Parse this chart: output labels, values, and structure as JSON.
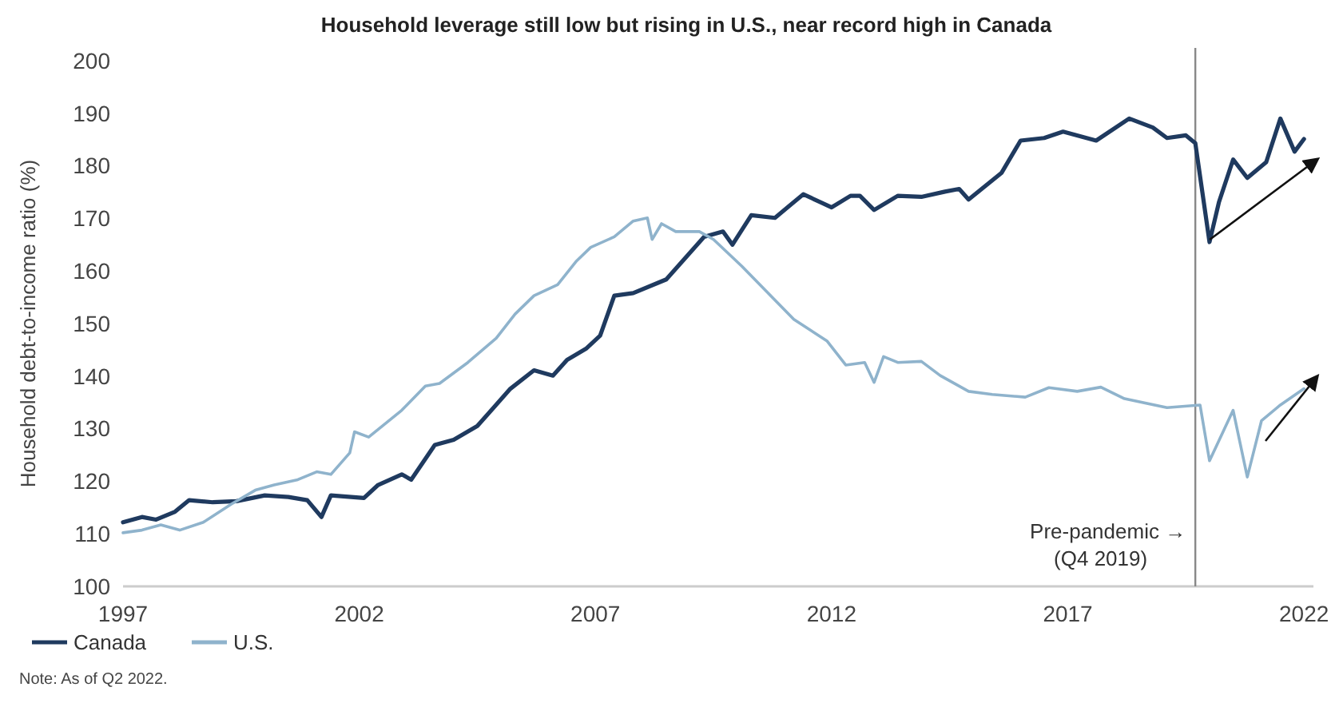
{
  "chart_data": {
    "type": "line",
    "title": "Household leverage still low but rising in U.S., near record high in Canada",
    "ylabel": "Household debt-to-income ratio (%)",
    "xlim": [
      1997,
      2022.2
    ],
    "xticks": [
      1997,
      2002,
      2007,
      2012,
      2017,
      2022
    ],
    "ylim": [
      100,
      200
    ],
    "yticks": [
      100,
      110,
      120,
      130,
      140,
      150,
      160,
      170,
      180,
      190,
      200
    ],
    "grid": false,
    "legend": "bottom left",
    "line_style": "solid",
    "marker": "none",
    "series": [
      {
        "name": "Canada",
        "color": "#1f3a5f",
        "x": [
          1997.0,
          1997.4,
          1997.7,
          1998.1,
          1998.4,
          1998.9,
          1999.4,
          2000.0,
          2000.5,
          2000.9,
          2001.2,
          2001.4,
          2002.1,
          2002.4,
          2002.9,
          2003.1,
          2003.6,
          2004.0,
          2004.5,
          2005.2,
          2005.7,
          2006.1,
          2006.4,
          2006.8,
          2007.1,
          2007.4,
          2007.8,
          2008.5,
          2009.3,
          2009.7,
          2009.9,
          2010.3,
          2010.8,
          2011.4,
          2012.0,
          2012.4,
          2012.6,
          2012.9,
          2013.4,
          2013.9,
          2014.4,
          2014.7,
          2014.9,
          2015.6,
          2016.0,
          2016.5,
          2016.9,
          2017.6,
          2018.3,
          2018.8,
          2019.1,
          2019.5,
          2019.7,
          2020.0,
          2020.2,
          2020.5,
          2020.8,
          2021.2,
          2021.5,
          2021.8,
          2022.0
        ],
        "values": [
          112.2,
          113.2,
          112.7,
          114.2,
          116.4,
          116,
          116.2,
          117.3,
          117,
          116.4,
          113.2,
          117.3,
          116.8,
          119.3,
          121.3,
          120.3,
          126.9,
          127.9,
          130.5,
          137.6,
          141.1,
          140.1,
          143.1,
          145.2,
          147.7,
          155.3,
          155.8,
          158.4,
          166.5,
          167.5,
          165,
          170.6,
          170.1,
          174.6,
          172.1,
          174.3,
          174.3,
          171.6,
          174.3,
          174.1,
          175.1,
          175.6,
          173.6,
          178.7,
          184.8,
          185.3,
          186.5,
          184.8,
          189,
          187.3,
          185.3,
          185.8,
          184.3,
          165.5,
          173.1,
          181.2,
          177.7,
          180.7,
          189,
          182.7,
          185.1
        ]
      },
      {
        "name": "U.S.",
        "color": "#8fb3cc",
        "x": [
          1997.0,
          1997.4,
          1997.8,
          1998.2,
          1998.7,
          1999.3,
          1999.8,
          2000.2,
          2000.7,
          2001.1,
          2001.4,
          2001.8,
          2001.9,
          2002.2,
          2002.9,
          2003.4,
          2003.7,
          2004.3,
          2004.9,
          2005.3,
          2005.7,
          2006.2,
          2006.6,
          2006.9,
          2007.4,
          2007.8,
          2008.1,
          2008.2,
          2008.4,
          2008.7,
          2009.2,
          2009.5,
          2010.1,
          2010.6,
          2011.2,
          2011.9,
          2012.3,
          2012.7,
          2012.9,
          2013.1,
          2013.4,
          2013.9,
          2014.3,
          2014.9,
          2015.4,
          2016.1,
          2016.6,
          2017.2,
          2017.7,
          2018.2,
          2019.1,
          2019.8,
          2020.0,
          2020.5,
          2020.8,
          2021.1,
          2021.5,
          2022.0
        ],
        "values": [
          110.2,
          110.7,
          111.7,
          110.7,
          112.2,
          115.7,
          118.3,
          119.3,
          120.3,
          121.8,
          121.3,
          125.4,
          129.4,
          128.4,
          133.5,
          138.1,
          138.6,
          142.6,
          147.2,
          151.8,
          155.3,
          157.4,
          161.9,
          164.5,
          166.5,
          169.5,
          170.1,
          166,
          169,
          167.5,
          167.5,
          166,
          160.9,
          156.3,
          150.8,
          146.7,
          142.1,
          142.6,
          138.8,
          143.7,
          142.6,
          142.8,
          140.1,
          137.1,
          136.5,
          136,
          137.8,
          137.1,
          137.9,
          135.7,
          134,
          134.5,
          123.9,
          133.5,
          120.8,
          131.5,
          134.5,
          137.6
        ]
      }
    ],
    "ref_lines": [
      {
        "axis": "x",
        "value": 2019.7,
        "label": "Pre-pandemic →\n(Q4 2019)",
        "color": "#888888"
      }
    ],
    "annotations": [
      "Note: As of Q2 2022."
    ]
  }
}
